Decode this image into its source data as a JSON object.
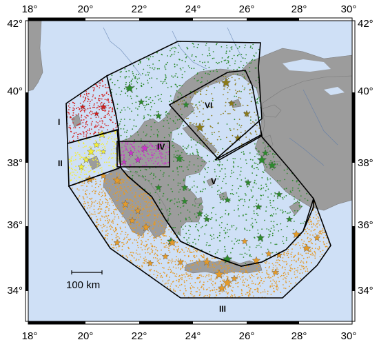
{
  "map": {
    "lon_ticks": [
      "18°",
      "20°",
      "22°",
      "24°",
      "26°",
      "28°",
      "30°"
    ],
    "lat_ticks": [
      "42°",
      "40°",
      "38°",
      "36°",
      "34°"
    ],
    "scale_bar_label": "100 km",
    "zones": [
      {
        "id": "I",
        "label": "I"
      },
      {
        "id": "II",
        "label": "II"
      },
      {
        "id": "III",
        "label": "III"
      },
      {
        "id": "IV",
        "label": "IV"
      },
      {
        "id": "V",
        "label": "V"
      },
      {
        "id": "VI",
        "label": "VI"
      }
    ],
    "colors": {
      "sea": "#cfe0f6",
      "land": "#9c9c9c",
      "zone_I": "#d11f1f",
      "zone_II": "#f2ee3a",
      "zone_III": "#e39a2a",
      "zone_IV": "#cc33cc",
      "zone_V": "#2d8a2d",
      "zone_VI": "#8a7a1a",
      "frame": "#000000"
    },
    "icons": [
      "star-icon"
    ]
  }
}
